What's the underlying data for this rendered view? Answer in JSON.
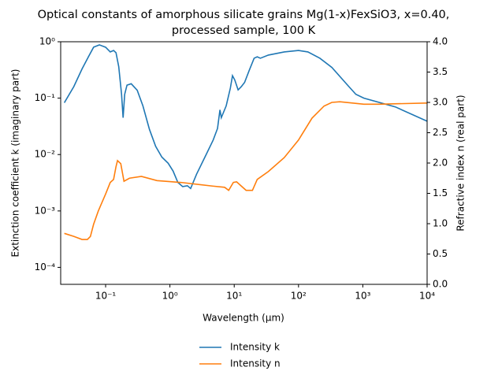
{
  "chart_data": {
    "type": "line",
    "title": [
      "Optical constants of amorphous silicate grains Mg(1-x)FexSiO3, x=0.40,",
      "processed sample, 100 K"
    ],
    "x_label": "Wavelength (μm)",
    "y_label": "Extinction coefficient k (imaginary part)",
    "y2_label": "Refractive index n (real part)",
    "xscale": "log",
    "yscale": "log",
    "xlim": [
      0.02,
      10000
    ],
    "xticks": [
      {
        "value": 0.1,
        "label": "10⁻¹"
      },
      {
        "value": 1,
        "label": "10⁰"
      },
      {
        "value": 10,
        "label": "10¹"
      },
      {
        "value": 100,
        "label": "10²"
      },
      {
        "value": 1000,
        "label": "10³"
      },
      {
        "value": 10000,
        "label": "10⁴"
      }
    ],
    "ylim": [
      5e-05,
      1
    ],
    "yticks": [
      {
        "value": 0.0001,
        "label": "10⁻⁴"
      },
      {
        "value": 0.001,
        "label": "10⁻³"
      },
      {
        "value": 0.01,
        "label": "10⁻²"
      },
      {
        "value": 0.1,
        "label": "10⁻¹"
      },
      {
        "value": 1,
        "label": "10⁰"
      }
    ],
    "y2lim": [
      0,
      4
    ],
    "y2ticks": [
      {
        "value": 0,
        "label": "0.0"
      },
      0.5,
      {
        "value": 1,
        "label": "1.0"
      },
      1.5,
      {
        "value": 2,
        "label": "2.0"
      },
      2.5,
      {
        "value": 3,
        "label": "3.0"
      },
      3.5,
      {
        "value": 4,
        "label": "4.0"
      }
    ],
    "legend": "below",
    "series": [
      {
        "name": "Intensity k",
        "color": "#1f77b4",
        "x": [
          0.0228,
          0.032,
          0.043,
          0.054,
          0.065,
          0.08,
          0.1,
          0.118,
          0.133,
          0.145,
          0.16,
          0.177,
          0.187,
          0.198,
          0.215,
          0.25,
          0.31,
          0.38,
          0.48,
          0.6,
          0.75,
          0.94,
          1.12,
          1.33,
          1.58,
          1.87,
          2.1,
          2.6,
          3.5,
          4.7,
          5.5,
          6.0,
          6.3,
          7.5,
          8.7,
          9.4,
          10.2,
          11.5,
          12.9,
          14.5,
          17.1,
          20.4,
          22.8,
          25.5,
          34,
          60,
          100,
          140,
          215,
          330,
          580,
          780,
          1040,
          3200,
          10000
        ],
        "values": [
          0.083,
          0.16,
          0.33,
          0.54,
          0.8,
          0.88,
          0.8,
          0.66,
          0.7,
          0.64,
          0.36,
          0.117,
          0.045,
          0.117,
          0.17,
          0.18,
          0.138,
          0.073,
          0.028,
          0.014,
          0.009,
          0.007,
          0.0051,
          0.0032,
          0.0027,
          0.0028,
          0.0025,
          0.0045,
          0.009,
          0.018,
          0.029,
          0.062,
          0.045,
          0.073,
          0.15,
          0.25,
          0.21,
          0.14,
          0.16,
          0.19,
          0.31,
          0.51,
          0.54,
          0.51,
          0.58,
          0.66,
          0.7,
          0.66,
          0.51,
          0.35,
          0.17,
          0.117,
          0.1,
          0.07,
          0.039
        ]
      },
      {
        "name": "Intensity n",
        "color": "#ff7f0e",
        "axis": "y2",
        "x": [
          0.0228,
          0.032,
          0.043,
          0.052,
          0.058,
          0.065,
          0.077,
          0.1,
          0.118,
          0.133,
          0.145,
          0.153,
          0.172,
          0.193,
          0.235,
          0.36,
          0.63,
          1.49,
          4.6,
          7.1,
          8.2,
          9.7,
          10.9,
          12.9,
          15.3,
          19.2,
          22.8,
          34,
          60,
          100,
          162,
          250,
          330,
          440,
          1040,
          1800,
          10000
        ],
        "values": [
          0.84,
          0.79,
          0.74,
          0.74,
          0.79,
          0.99,
          1.21,
          1.49,
          1.68,
          1.73,
          1.94,
          2.04,
          1.99,
          1.7,
          1.75,
          1.78,
          1.71,
          1.68,
          1.62,
          1.6,
          1.55,
          1.68,
          1.69,
          1.62,
          1.55,
          1.55,
          1.73,
          1.86,
          2.09,
          2.38,
          2.74,
          2.94,
          3.0,
          3.01,
          2.97,
          2.97,
          2.99
        ]
      }
    ]
  }
}
